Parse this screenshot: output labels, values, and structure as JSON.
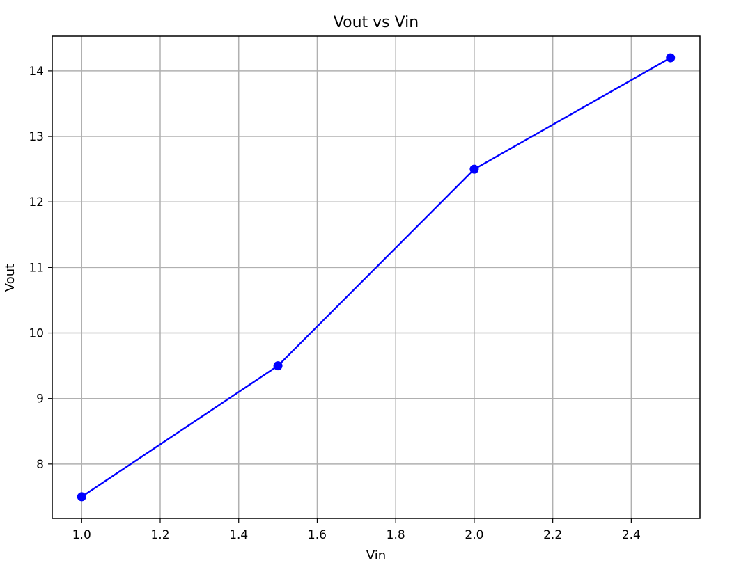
{
  "chart_data": {
    "type": "line",
    "title": "Vout vs Vin",
    "xlabel": "Vin",
    "ylabel": "Vout",
    "x": [
      1.0,
      1.5,
      2.0,
      2.5
    ],
    "series": [
      {
        "values": [
          7.5,
          9.5,
          12.5,
          14.2
        ],
        "color": "#0000ff",
        "marker": "circle"
      }
    ],
    "xlim": [
      0.925,
      2.575
    ],
    "ylim": [
      7.17,
      14.53
    ],
    "xticks": [
      1.0,
      1.2,
      1.4,
      1.6,
      1.8,
      2.0,
      2.2,
      2.4
    ],
    "xtick_labels": [
      "1.0",
      "1.2",
      "1.4",
      "1.6",
      "1.8",
      "2.0",
      "2.2",
      "2.4"
    ],
    "yticks": [
      8,
      9,
      10,
      11,
      12,
      13,
      14
    ],
    "ytick_labels": [
      "8",
      "9",
      "10",
      "11",
      "12",
      "13",
      "14"
    ],
    "grid": true,
    "grid_color": "#b0b0b0",
    "legend": "none"
  }
}
